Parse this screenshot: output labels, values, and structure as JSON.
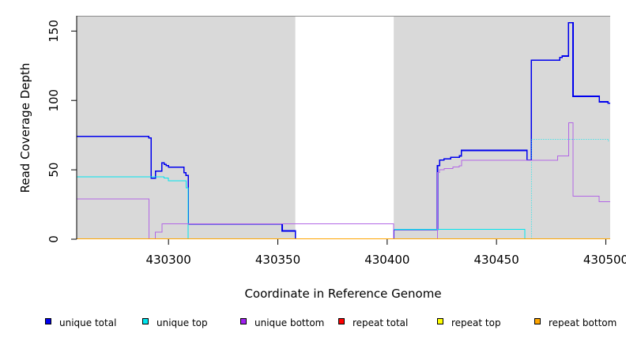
{
  "chart_data": {
    "type": "line",
    "step": true,
    "xlabel": "Coordinate in Reference Genome",
    "ylabel": "Read Coverage Depth",
    "xlim": [
      430258,
      430502
    ],
    "ylim": [
      0,
      161
    ],
    "x_ticks": [
      430300,
      430350,
      430400,
      430450,
      430500
    ],
    "x_tick_labels": [
      "430300",
      "430350",
      "430400",
      "430450",
      "430500"
    ],
    "y_ticks": [
      0,
      50,
      100,
      150
    ],
    "y_tick_labels": [
      "0",
      "50",
      "100",
      "150"
    ],
    "shaded_regions": [
      {
        "x0": 430258,
        "x1": 430358,
        "color": "#d9d9d9"
      },
      {
        "x0": 430403,
        "x1": 430502,
        "color": "#d9d9d9"
      }
    ],
    "legend_position": "bottom",
    "series": [
      {
        "name": "unique total",
        "color": "#0000ee",
        "width": 1.6,
        "x": [
          430258,
          430291,
          430292,
          430294,
          430297,
          430298,
          430299,
          430300,
          430302,
          430307,
          430308,
          430309,
          430352,
          430358,
          430403,
          430423,
          430424,
          430426,
          430429,
          430433,
          430434,
          430464,
          430466,
          430479,
          430480,
          430483,
          430485,
          430497,
          430501,
          430502
        ],
        "y": [
          74,
          73,
          44,
          49,
          55,
          54,
          53,
          52,
          52,
          48,
          46,
          11,
          6,
          0,
          7,
          53,
          57,
          58,
          59,
          60,
          64,
          57,
          129,
          131,
          132,
          156,
          103,
          99,
          98,
          98
        ]
      },
      {
        "name": "unique top",
        "color": "#00e5ee",
        "width": 1,
        "x": [
          430258,
          430294,
          430298,
          430300,
          430307,
          430308,
          430309,
          430403,
          430463,
          430464,
          430466,
          430501,
          430502
        ],
        "y": [
          45,
          45,
          44,
          42,
          42,
          37,
          0,
          7,
          0,
          0,
          72,
          71,
          71
        ],
        "dashed_after_x": 430463
      },
      {
        "name": "unique bottom",
        "color": "#b266e5",
        "width": 1,
        "x": [
          430258,
          430291,
          430294,
          430296,
          430297,
          430298,
          430309,
          430403,
          430423,
          430424,
          430426,
          430430,
          430433,
          430434,
          430477,
          430478,
          430483,
          430485,
          430497,
          430502
        ],
        "y": [
          29,
          0,
          5,
          5,
          11,
          11,
          11,
          0,
          48,
          50,
          51,
          52,
          53,
          57,
          57,
          60,
          84,
          31,
          27,
          27
        ]
      },
      {
        "name": "repeat total",
        "color": "#ff0000",
        "width": 1,
        "x": [
          430258,
          430502
        ],
        "y": [
          0,
          0
        ]
      },
      {
        "name": "repeat top",
        "color": "#ffff00",
        "width": 1,
        "x": [
          430258,
          430502
        ],
        "y": [
          0,
          0
        ]
      },
      {
        "name": "repeat bottom",
        "color": "#ffa500",
        "width": 1.6,
        "x": [
          430258,
          430502
        ],
        "y": [
          0,
          0
        ]
      }
    ],
    "legend": [
      {
        "label": "unique total",
        "color": "#0000ee"
      },
      {
        "label": "unique top",
        "color": "#00e5ee"
      },
      {
        "label": "unique bottom",
        "color": "#a020f0"
      },
      {
        "label": "repeat total",
        "color": "#ff0000"
      },
      {
        "label": "repeat top",
        "color": "#ffff00"
      },
      {
        "label": "repeat bottom",
        "color": "#ffa500"
      }
    ]
  }
}
